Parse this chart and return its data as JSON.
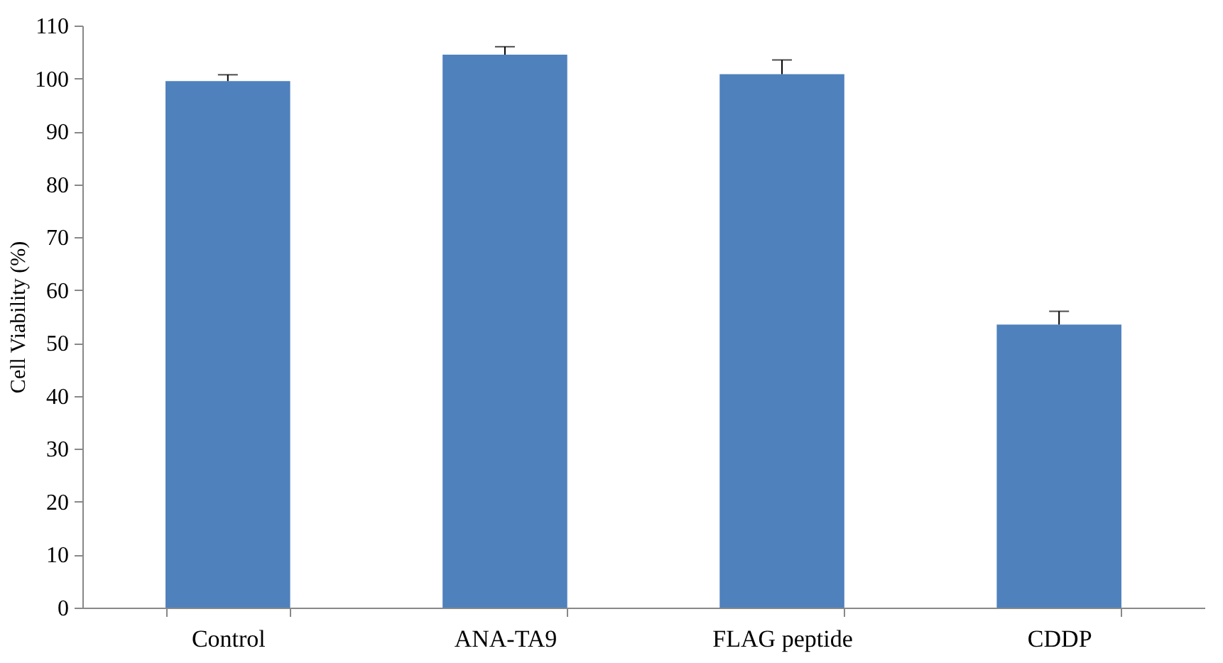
{
  "chart_data": {
    "type": "bar",
    "ylabel": "Cell Viability (%)",
    "categories": [
      "Control",
      "ANA-TA9",
      "FLAG peptide",
      "CDDP"
    ],
    "values": [
      99.5,
      104.5,
      100.8,
      53.5
    ],
    "errors": [
      1.2,
      1.5,
      2.7,
      2.5
    ],
    "color": "#4f81bd",
    "ylim": [
      0,
      110
    ],
    "yticks": [
      0,
      10,
      20,
      30,
      40,
      50,
      60,
      70,
      80,
      90,
      100,
      110
    ],
    "grid": false
  }
}
